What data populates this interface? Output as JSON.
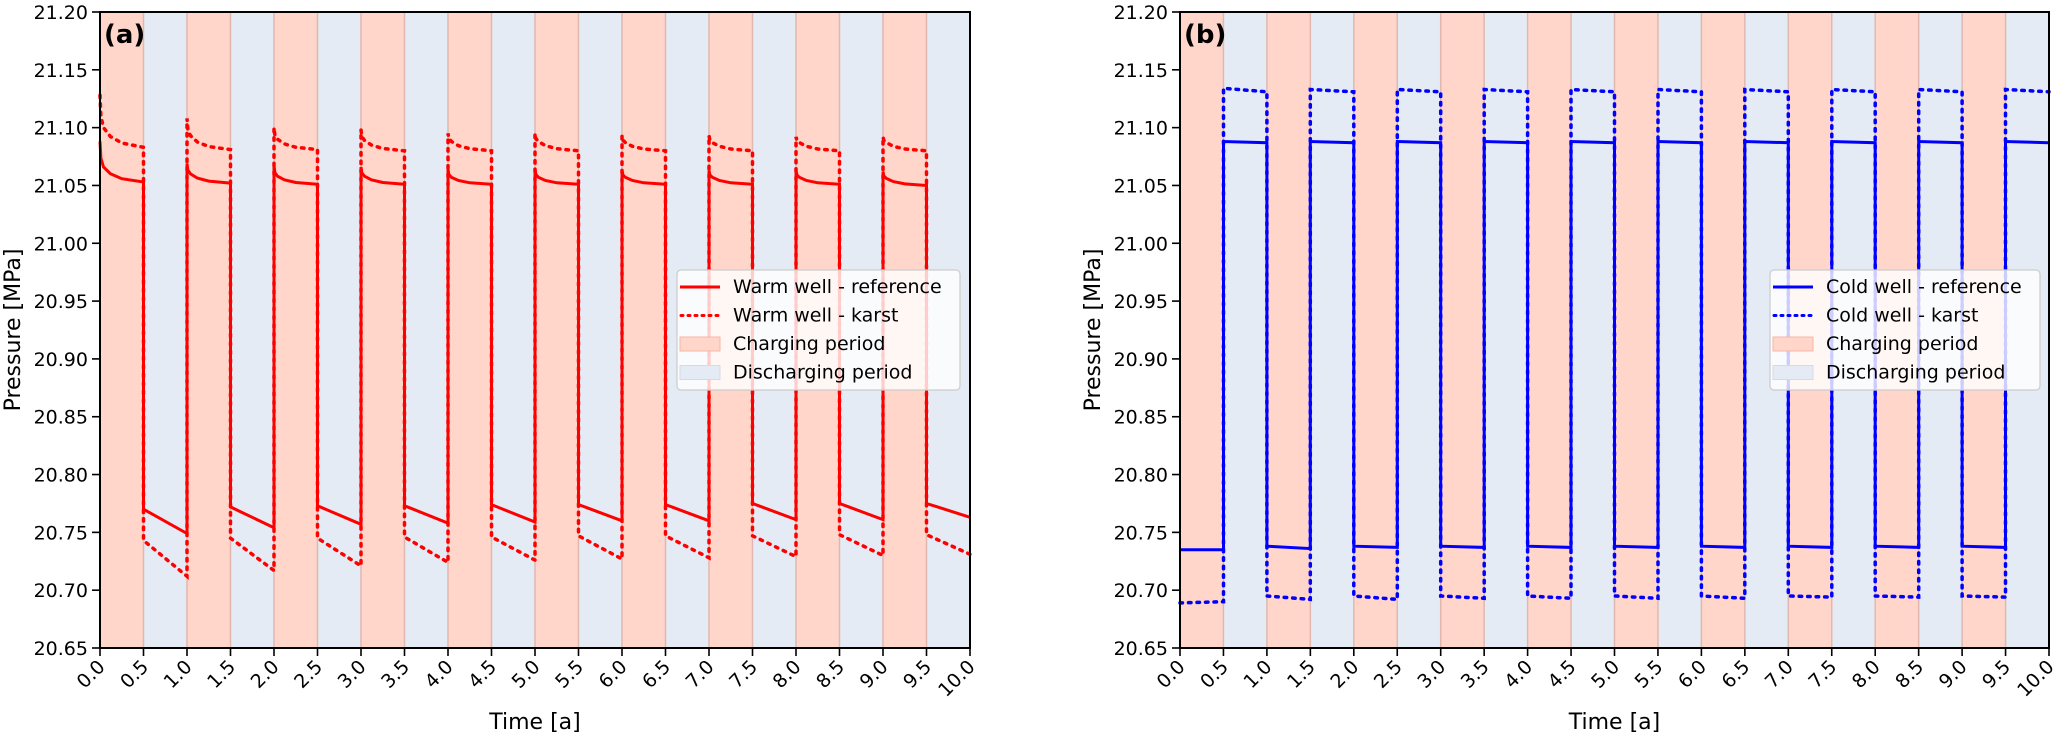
{
  "chart_data": [
    {
      "type": "line",
      "panel_label": "(a)",
      "xlabel": "Time [a]",
      "ylabel": "Pressure [MPa]",
      "xlim": [
        0,
        10
      ],
      "ylim": [
        20.65,
        21.2
      ],
      "xticks": [
        "0.0",
        "0.5",
        "1.0",
        "1.5",
        "2.0",
        "2.5",
        "3.0",
        "3.5",
        "4.0",
        "4.5",
        "5.0",
        "5.5",
        "6.0",
        "6.5",
        "7.0",
        "7.5",
        "8.0",
        "8.5",
        "9.0",
        "9.5",
        "10.0"
      ],
      "yticks": [
        "20.65",
        "20.70",
        "20.75",
        "20.80",
        "20.85",
        "20.90",
        "20.95",
        "21.00",
        "21.05",
        "21.10",
        "21.15",
        "21.20"
      ],
      "grid": false,
      "legend_position": "center-right",
      "periods": {
        "charging": [
          [
            0,
            0.5
          ],
          [
            1,
            1.5
          ],
          [
            2,
            2.5
          ],
          [
            3,
            3.5
          ],
          [
            4,
            4.5
          ],
          [
            5,
            5.5
          ],
          [
            6,
            6.5
          ],
          [
            7,
            7.5
          ],
          [
            8,
            8.5
          ],
          [
            9,
            9.5
          ]
        ],
        "discharging": [
          [
            0.5,
            1
          ],
          [
            1.5,
            2
          ],
          [
            2.5,
            3
          ],
          [
            3.5,
            4
          ],
          [
            4.5,
            5
          ],
          [
            5.5,
            6
          ],
          [
            6.5,
            7
          ],
          [
            7.5,
            8
          ],
          [
            8.5,
            9
          ],
          [
            9.5,
            10
          ]
        ]
      },
      "legend": [
        {
          "label": "Warm well - reference",
          "kind": "line-solid",
          "color": "#ff0000"
        },
        {
          "label": "Warm well - karst",
          "kind": "line-dotted",
          "color": "#ff0000"
        },
        {
          "label": "Charging period",
          "kind": "patch",
          "color": "#ffd6c9"
        },
        {
          "label": "Discharging period",
          "kind": "patch",
          "color": "#e4ebf5"
        }
      ],
      "series": [
        {
          "name": "Warm well - reference",
          "style": "solid",
          "color": "#ff0000",
          "cycles": [
            {
              "charge_peak": 21.088,
              "charge_knee": 21.066,
              "charge_end": 21.053,
              "discharge_start": 20.77,
              "discharge_end": 20.749
            },
            {
              "charge_peak": 21.069,
              "charge_knee": 21.06,
              "charge_end": 21.052,
              "discharge_start": 20.772,
              "discharge_end": 20.754
            },
            {
              "charge_peak": 21.067,
              "charge_knee": 21.058,
              "charge_end": 21.051,
              "discharge_start": 20.773,
              "discharge_end": 20.757
            },
            {
              "charge_peak": 21.066,
              "charge_knee": 21.058,
              "charge_end": 21.051,
              "discharge_start": 20.773,
              "discharge_end": 20.758
            },
            {
              "charge_peak": 21.064,
              "charge_knee": 21.057,
              "charge_end": 21.051,
              "discharge_start": 20.774,
              "discharge_end": 20.759
            },
            {
              "charge_peak": 21.064,
              "charge_knee": 21.057,
              "charge_end": 21.051,
              "discharge_start": 20.774,
              "discharge_end": 20.76
            },
            {
              "charge_peak": 21.063,
              "charge_knee": 21.057,
              "charge_end": 21.051,
              "discharge_start": 20.774,
              "discharge_end": 20.76
            },
            {
              "charge_peak": 21.063,
              "charge_knee": 21.057,
              "charge_end": 21.051,
              "discharge_start": 20.775,
              "discharge_end": 20.761
            },
            {
              "charge_peak": 21.063,
              "charge_knee": 21.057,
              "charge_end": 21.051,
              "discharge_start": 20.775,
              "discharge_end": 20.761
            },
            {
              "charge_peak": 21.062,
              "charge_knee": 21.056,
              "charge_end": 21.05,
              "discharge_start": 20.775,
              "discharge_end": 20.763
            }
          ]
        },
        {
          "name": "Warm well - karst",
          "style": "dotted",
          "color": "#ff0000",
          "cycles": [
            {
              "charge_peak": 21.128,
              "charge_knee": 21.1,
              "charge_end": 21.083,
              "discharge_start": 20.743,
              "discharge_end": 20.712
            },
            {
              "charge_peak": 21.108,
              "charge_knee": 21.093,
              "charge_end": 21.081,
              "discharge_start": 20.745,
              "discharge_end": 20.717
            },
            {
              "charge_peak": 21.1,
              "charge_knee": 21.09,
              "charge_end": 21.081,
              "discharge_start": 20.745,
              "discharge_end": 20.721
            },
            {
              "charge_peak": 21.098,
              "charge_knee": 21.089,
              "charge_end": 21.08,
              "discharge_start": 20.746,
              "discharge_end": 20.724
            },
            {
              "charge_peak": 21.095,
              "charge_knee": 21.088,
              "charge_end": 21.08,
              "discharge_start": 20.746,
              "discharge_end": 20.726
            },
            {
              "charge_peak": 21.095,
              "charge_knee": 21.088,
              "charge_end": 21.08,
              "discharge_start": 20.747,
              "discharge_end": 20.727
            },
            {
              "charge_peak": 21.093,
              "charge_knee": 21.087,
              "charge_end": 21.08,
              "discharge_start": 20.747,
              "discharge_end": 20.728
            },
            {
              "charge_peak": 21.093,
              "charge_knee": 21.087,
              "charge_end": 21.08,
              "discharge_start": 20.747,
              "discharge_end": 20.729
            },
            {
              "charge_peak": 21.092,
              "charge_knee": 21.087,
              "charge_end": 21.08,
              "discharge_start": 20.748,
              "discharge_end": 20.73
            },
            {
              "charge_peak": 21.092,
              "charge_knee": 21.087,
              "charge_end": 21.08,
              "discharge_start": 20.748,
              "discharge_end": 20.731
            }
          ]
        }
      ]
    },
    {
      "type": "line",
      "panel_label": "(b)",
      "xlabel": "Time [a]",
      "ylabel": "Pressure [MPa]",
      "xlim": [
        0,
        10
      ],
      "ylim": [
        20.65,
        21.2
      ],
      "xticks": [
        "0.0",
        "0.5",
        "1.0",
        "1.5",
        "2.0",
        "2.5",
        "3.0",
        "3.5",
        "4.0",
        "4.5",
        "5.0",
        "5.5",
        "6.0",
        "6.5",
        "7.0",
        "7.5",
        "8.0",
        "8.5",
        "9.0",
        "9.5",
        "10.0"
      ],
      "yticks": [
        "20.65",
        "20.70",
        "20.75",
        "20.80",
        "20.85",
        "20.90",
        "20.95",
        "21.00",
        "21.05",
        "21.10",
        "21.15",
        "21.20"
      ],
      "grid": false,
      "legend_position": "center-right",
      "periods": {
        "charging": [
          [
            0,
            0.5
          ],
          [
            1,
            1.5
          ],
          [
            2,
            2.5
          ],
          [
            3,
            3.5
          ],
          [
            4,
            4.5
          ],
          [
            5,
            5.5
          ],
          [
            6,
            6.5
          ],
          [
            7,
            7.5
          ],
          [
            8,
            8.5
          ],
          [
            9,
            9.5
          ]
        ],
        "discharging": [
          [
            0.5,
            1
          ],
          [
            1.5,
            2
          ],
          [
            2.5,
            3
          ],
          [
            3.5,
            4
          ],
          [
            4.5,
            5
          ],
          [
            5.5,
            6
          ],
          [
            6.5,
            7
          ],
          [
            7.5,
            8
          ],
          [
            8.5,
            9
          ],
          [
            9.5,
            10
          ]
        ]
      },
      "legend": [
        {
          "label": "Cold well - reference",
          "kind": "line-solid",
          "color": "#0000ff"
        },
        {
          "label": "Cold well - karst",
          "kind": "line-dotted",
          "color": "#0000ff"
        },
        {
          "label": "Charging period",
          "kind": "patch",
          "color": "#ffd6c9"
        },
        {
          "label": "Discharging period",
          "kind": "patch",
          "color": "#e4ebf5"
        }
      ],
      "series": [
        {
          "name": "Cold well - reference",
          "style": "solid",
          "color": "#0000ff",
          "cycles": [
            {
              "charge_start": 20.735,
              "charge_end": 20.735,
              "discharge_start": 21.088,
              "discharge_end": 21.087
            },
            {
              "charge_start": 20.738,
              "charge_end": 20.736,
              "discharge_start": 21.088,
              "discharge_end": 21.087
            },
            {
              "charge_start": 20.738,
              "charge_end": 20.737,
              "discharge_start": 21.088,
              "discharge_end": 21.087
            },
            {
              "charge_start": 20.738,
              "charge_end": 20.737,
              "discharge_start": 21.088,
              "discharge_end": 21.087
            },
            {
              "charge_start": 20.738,
              "charge_end": 20.737,
              "discharge_start": 21.088,
              "discharge_end": 21.087
            },
            {
              "charge_start": 20.738,
              "charge_end": 20.737,
              "discharge_start": 21.088,
              "discharge_end": 21.087
            },
            {
              "charge_start": 20.738,
              "charge_end": 20.737,
              "discharge_start": 21.088,
              "discharge_end": 21.087
            },
            {
              "charge_start": 20.738,
              "charge_end": 20.737,
              "discharge_start": 21.088,
              "discharge_end": 21.087
            },
            {
              "charge_start": 20.738,
              "charge_end": 20.737,
              "discharge_start": 21.088,
              "discharge_end": 21.087
            },
            {
              "charge_start": 20.738,
              "charge_end": 20.737,
              "discharge_start": 21.088,
              "discharge_end": 21.087
            }
          ]
        },
        {
          "name": "Cold well - karst",
          "style": "dotted",
          "color": "#0000ff",
          "cycles": [
            {
              "charge_start": 20.689,
              "charge_end": 20.69,
              "discharge_start": 21.134,
              "discharge_end": 21.131
            },
            {
              "charge_start": 20.695,
              "charge_end": 20.692,
              "discharge_start": 21.133,
              "discharge_end": 21.131
            },
            {
              "charge_start": 20.695,
              "charge_end": 20.692,
              "discharge_start": 21.133,
              "discharge_end": 21.131
            },
            {
              "charge_start": 20.695,
              "charge_end": 20.693,
              "discharge_start": 21.133,
              "discharge_end": 21.131
            },
            {
              "charge_start": 20.695,
              "charge_end": 20.693,
              "discharge_start": 21.133,
              "discharge_end": 21.131
            },
            {
              "charge_start": 20.695,
              "charge_end": 20.693,
              "discharge_start": 21.133,
              "discharge_end": 21.131
            },
            {
              "charge_start": 20.695,
              "charge_end": 20.693,
              "discharge_start": 21.133,
              "discharge_end": 21.131
            },
            {
              "charge_start": 20.695,
              "charge_end": 20.694,
              "discharge_start": 21.133,
              "discharge_end": 21.131
            },
            {
              "charge_start": 20.695,
              "charge_end": 20.694,
              "discharge_start": 21.133,
              "discharge_end": 21.131
            },
            {
              "charge_start": 20.695,
              "charge_end": 20.694,
              "discharge_start": 21.133,
              "discharge_end": 21.131
            }
          ]
        }
      ]
    }
  ]
}
